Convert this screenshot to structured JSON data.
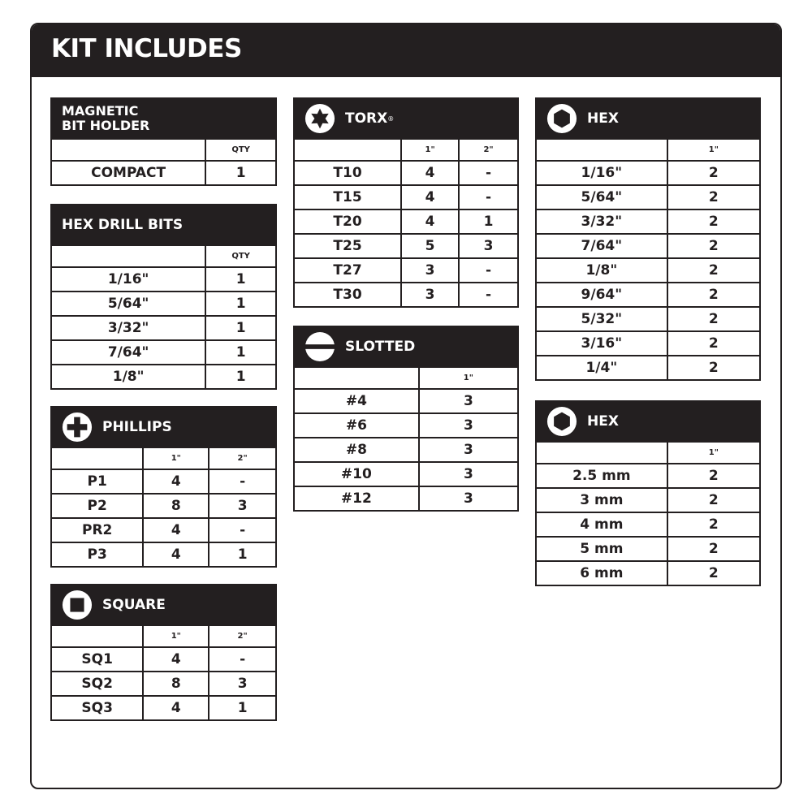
{
  "title": "KIT INCLUDES",
  "colors": {
    "ink": "#231f20",
    "background": "#ffffff"
  },
  "tables": [
    {
      "id": "magnetic-bit-holder",
      "title": "MAGNETIC\nBIT HOLDER",
      "icon": null,
      "columns": [
        "",
        "QTY"
      ],
      "rows": [
        [
          "COMPACT",
          "1"
        ]
      ]
    },
    {
      "id": "hex-drill-bits",
      "title": "HEX DRILL BITS",
      "icon": null,
      "columns": [
        "",
        "QTY"
      ],
      "rows": [
        [
          "1/16\"",
          "1"
        ],
        [
          "5/64\"",
          "1"
        ],
        [
          "3/32\"",
          "1"
        ],
        [
          "7/64\"",
          "1"
        ],
        [
          "1/8\"",
          "1"
        ]
      ]
    },
    {
      "id": "phillips",
      "title": "PHILLIPS",
      "icon": "phillips-icon",
      "columns": [
        "",
        "1\"",
        "2\""
      ],
      "rows": [
        [
          "P1",
          "4",
          "-"
        ],
        [
          "P2",
          "8",
          "3"
        ],
        [
          "PR2",
          "4",
          "-"
        ],
        [
          "P3",
          "4",
          "1"
        ]
      ]
    },
    {
      "id": "square",
      "title": "SQUARE",
      "icon": "square-icon",
      "columns": [
        "",
        "1\"",
        "2\""
      ],
      "rows": [
        [
          "SQ1",
          "4",
          "-"
        ],
        [
          "SQ2",
          "8",
          "3"
        ],
        [
          "SQ3",
          "4",
          "1"
        ]
      ]
    },
    {
      "id": "torx",
      "title": "TORX",
      "title_mark": "®",
      "icon": "torx-icon",
      "columns": [
        "",
        "1\"",
        "2\""
      ],
      "rows": [
        [
          "T10",
          "4",
          "-"
        ],
        [
          "T15",
          "4",
          "-"
        ],
        [
          "T20",
          "4",
          "1"
        ],
        [
          "T25",
          "5",
          "3"
        ],
        [
          "T27",
          "3",
          "-"
        ],
        [
          "T30",
          "3",
          "-"
        ]
      ]
    },
    {
      "id": "slotted",
      "title": "SLOTTED",
      "icon": "slotted-icon",
      "columns": [
        "",
        "1\""
      ],
      "rows": [
        [
          "#4",
          "3"
        ],
        [
          "#6",
          "3"
        ],
        [
          "#8",
          "3"
        ],
        [
          "#10",
          "3"
        ],
        [
          "#12",
          "3"
        ]
      ]
    },
    {
      "id": "hex-inch",
      "title": "HEX",
      "icon": "hex-icon",
      "columns": [
        "",
        "1\""
      ],
      "rows": [
        [
          "1/16\"",
          "2"
        ],
        [
          "5/64\"",
          "2"
        ],
        [
          "3/32\"",
          "2"
        ],
        [
          "7/64\"",
          "2"
        ],
        [
          "1/8\"",
          "2"
        ],
        [
          "9/64\"",
          "2"
        ],
        [
          "5/32\"",
          "2"
        ],
        [
          "3/16\"",
          "2"
        ],
        [
          "1/4\"",
          "2"
        ]
      ]
    },
    {
      "id": "hex-metric",
      "title": "HEX",
      "icon": "hex-icon",
      "columns": [
        "",
        "1\""
      ],
      "rows": [
        [
          "2.5 mm",
          "2"
        ],
        [
          "3 mm",
          "2"
        ],
        [
          "4 mm",
          "2"
        ],
        [
          "5 mm",
          "2"
        ],
        [
          "6 mm",
          "2"
        ]
      ]
    }
  ]
}
